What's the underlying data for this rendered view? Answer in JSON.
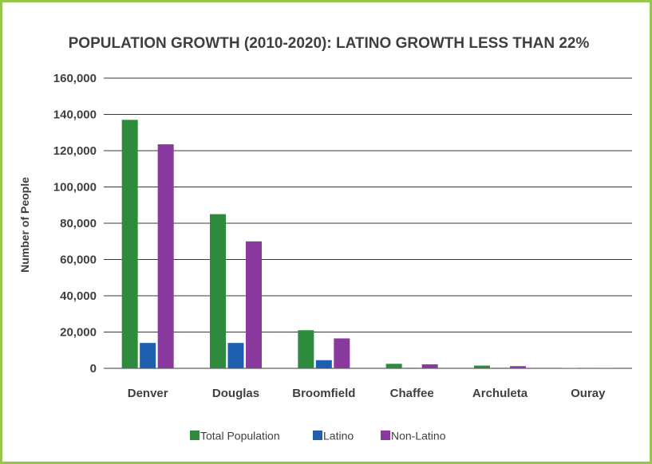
{
  "chart_data": {
    "type": "bar",
    "title": "POPULATION GROWTH (2010-2020): LATINO GROWTH LESS THAN 22%",
    "ylabel": "Number of People",
    "xlabel": "",
    "ylim": [
      0,
      160000
    ],
    "yticks": [
      0,
      20000,
      40000,
      60000,
      80000,
      100000,
      120000,
      140000,
      160000
    ],
    "ytick_labels": [
      "0",
      "20,000",
      "40,000",
      "60,000",
      "80,000",
      "100,000",
      "120,000",
      "140,000",
      "160,000"
    ],
    "categories": [
      "Denver",
      "Douglas",
      "Broomfield",
      "Chaffee",
      "Archuleta",
      "Ouray"
    ],
    "series": [
      {
        "name": "Total Population",
        "color": "#2e8b3e",
        "values": [
          137000,
          85000,
          21000,
          2500,
          1500,
          200
        ]
      },
      {
        "name": "Latino",
        "color": "#1f5fb0",
        "values": [
          14000,
          14000,
          4500,
          300,
          300,
          50
        ]
      },
      {
        "name": "Non-Latino",
        "color": "#8a3a9e",
        "values": [
          123500,
          70000,
          16500,
          2200,
          1200,
          150
        ]
      }
    ],
    "grid": true,
    "legend_position": "bottom"
  }
}
